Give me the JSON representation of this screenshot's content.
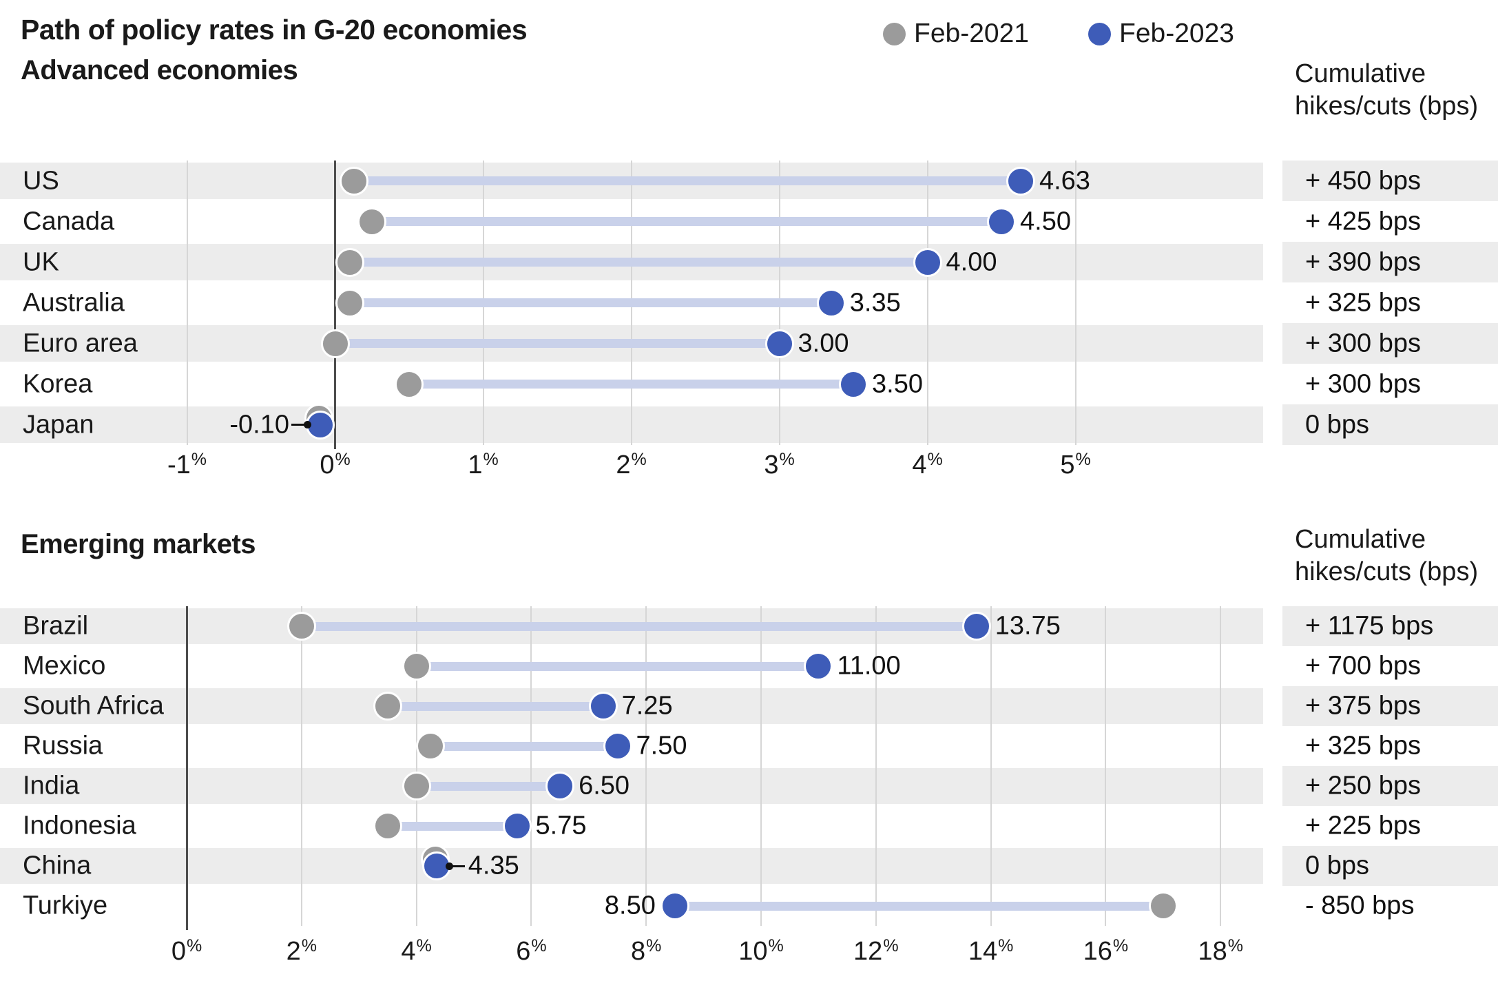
{
  "title": "Path of policy rates in G-20 economies",
  "legend": {
    "items": [
      {
        "label": "Feb-2021",
        "color": "#9b9b9b"
      },
      {
        "label": "Feb-2023",
        "color": "#3e5cb8"
      }
    ]
  },
  "colors": {
    "feb2021_dot": "#9b9b9b",
    "feb2023_dot": "#3e5cb8",
    "connector_bar": "#c9d1ea",
    "row_stripe": "#ececec",
    "gridline": "#d6d6d6",
    "zero_line": "#4d4d4d",
    "text": "#1a1a1a"
  },
  "chart_data": {
    "type": "dumbbell",
    "title": "Path of policy rates in G-20 economies",
    "series": [
      "Feb-2021",
      "Feb-2023"
    ],
    "unit": "%",
    "legend_position": "top-right",
    "panels": [
      {
        "header": "Advanced economies",
        "column_header": [
          "Cumulative",
          "hikes/cuts (bps)"
        ],
        "axis": {
          "ticks": [
            -1,
            0,
            1,
            2,
            3,
            4,
            5
          ],
          "tick_suffix": "%",
          "min": -1,
          "max": 5.7,
          "grid": true
        },
        "rows": [
          {
            "label": "US",
            "feb2021": 0.13,
            "feb2023": 4.63,
            "value_label": "4.63",
            "cumulative": "+ 450 bps"
          },
          {
            "label": "Canada",
            "feb2021": 0.25,
            "feb2023": 4.5,
            "value_label": "4.50",
            "cumulative": "+ 425 bps"
          },
          {
            "label": "UK",
            "feb2021": 0.1,
            "feb2023": 4.0,
            "value_label": "4.00",
            "cumulative": "+ 390 bps"
          },
          {
            "label": "Australia",
            "feb2021": 0.1,
            "feb2023": 3.35,
            "value_label": "3.35",
            "cumulative": "+ 325 bps"
          },
          {
            "label": "Euro area",
            "feb2021": 0.0,
            "feb2023": 3.0,
            "value_label": "3.00",
            "cumulative": "+ 300 bps"
          },
          {
            "label": "Korea",
            "feb2021": 0.5,
            "feb2023": 3.5,
            "value_label": "3.50",
            "cumulative": "+ 300 bps"
          },
          {
            "label": "Japan",
            "feb2021": -0.1,
            "feb2023": -0.1,
            "value_label": "-0.10",
            "cumulative": "0 bps",
            "value_side": "left",
            "leader": true
          }
        ]
      },
      {
        "header": "Emerging markets",
        "column_header": [
          "Cumulative",
          "hikes/cuts (bps)"
        ],
        "axis": {
          "ticks": [
            0,
            2,
            4,
            6,
            8,
            10,
            12,
            14,
            16,
            18
          ],
          "tick_suffix": "%",
          "min": 0,
          "max": 18.7,
          "grid": true
        },
        "rows": [
          {
            "label": "Brazil",
            "feb2021": 2.0,
            "feb2023": 13.75,
            "value_label": "13.75",
            "cumulative": "+ 1175 bps"
          },
          {
            "label": "Mexico",
            "feb2021": 4.0,
            "feb2023": 11.0,
            "value_label": "11.00",
            "cumulative": "+ 700 bps"
          },
          {
            "label": "South Africa",
            "feb2021": 3.5,
            "feb2023": 7.25,
            "value_label": "7.25",
            "cumulative": "+ 375 bps"
          },
          {
            "label": "Russia",
            "feb2021": 4.25,
            "feb2023": 7.5,
            "value_label": "7.50",
            "cumulative": "+ 325 bps"
          },
          {
            "label": "India",
            "feb2021": 4.0,
            "feb2023": 6.5,
            "value_label": "6.50",
            "cumulative": "+ 250 bps"
          },
          {
            "label": "Indonesia",
            "feb2021": 3.5,
            "feb2023": 5.75,
            "value_label": "5.75",
            "cumulative": "+ 225 bps"
          },
          {
            "label": "China",
            "feb2021": 4.35,
            "feb2023": 4.35,
            "value_label": "4.35",
            "cumulative": "0 bps",
            "value_side": "right",
            "leader": true
          },
          {
            "label": "Turkiye",
            "feb2021": 17.0,
            "feb2023": 8.5,
            "value_label": "8.50",
            "cumulative": "- 850 bps",
            "value_side": "left"
          }
        ]
      }
    ]
  }
}
